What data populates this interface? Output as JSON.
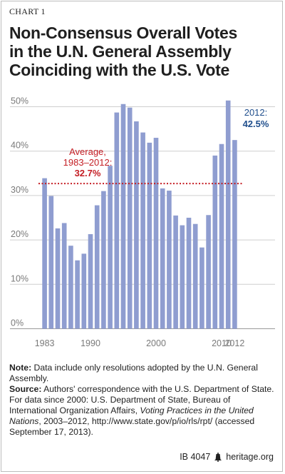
{
  "chart_label": "CHART 1",
  "title_lines": [
    "Non-Consensus Overall Votes",
    "in the U.N. General Assembly",
    "Coinciding with the U.S. Vote"
  ],
  "colors": {
    "bar": "#8f9dd0",
    "average_line": "#c41e24",
    "callout": "#1f4e8c",
    "grid": "#cfcfcf",
    "axis_text": "#7a7a7a"
  },
  "chart_data": {
    "type": "bar",
    "x": [
      1983,
      1984,
      1985,
      1986,
      1987,
      1988,
      1989,
      1990,
      1991,
      1992,
      1993,
      1994,
      1995,
      1996,
      1997,
      1998,
      1999,
      2000,
      2001,
      2002,
      2003,
      2004,
      2005,
      2006,
      2007,
      2008,
      2009,
      2010,
      2011,
      2012
    ],
    "values": [
      33.9,
      29.9,
      22.6,
      23.8,
      18.7,
      15.4,
      16.9,
      21.3,
      27.8,
      31.0,
      36.7,
      48.7,
      50.6,
      49.8,
      46.7,
      44.2,
      41.9,
      43.0,
      31.6,
      31.1,
      25.5,
      23.3,
      25.0,
      23.6,
      18.3,
      25.6,
      39.0,
      41.6,
      51.4,
      42.5
    ],
    "ylim": [
      0,
      55
    ],
    "yticks": [
      0,
      10,
      20,
      30,
      40,
      50
    ],
    "ytick_labels": [
      "0%",
      "10%",
      "20%",
      "30%",
      "40%",
      "50%"
    ],
    "xtick_labels": [
      "1983",
      "1990",
      "2000",
      "2010",
      "2012"
    ],
    "xtick_years": [
      1983,
      1990,
      2000,
      2010,
      2012
    ],
    "grid": true,
    "average": 32.7,
    "average_label_line1": "Average,",
    "average_label_line2": "1983–2012:",
    "average_label_value": "32.7%",
    "last_label_line1": "2012:",
    "last_label_value": "42.5%"
  },
  "notes": {
    "note_label": "Note:",
    "note_text": "Data include only resolutions adopted by the U.N. General Assembly.",
    "source_label": "Source:",
    "source_text_1": "Authors' correspondence with the U.S. Department of State. For data since 2000: U.S. Department of State, Bureau of International Organization Affairs,",
    "source_italic": "Voting Practices in the United Nations",
    "source_text_2": ", 2003–2012, http://www.state.gov/p/io/rls/rpt/ (accessed September 17, 2013)."
  },
  "footer": {
    "id": "IB 4047",
    "site": "heritage.org",
    "icon": "liberty-bell-icon"
  }
}
